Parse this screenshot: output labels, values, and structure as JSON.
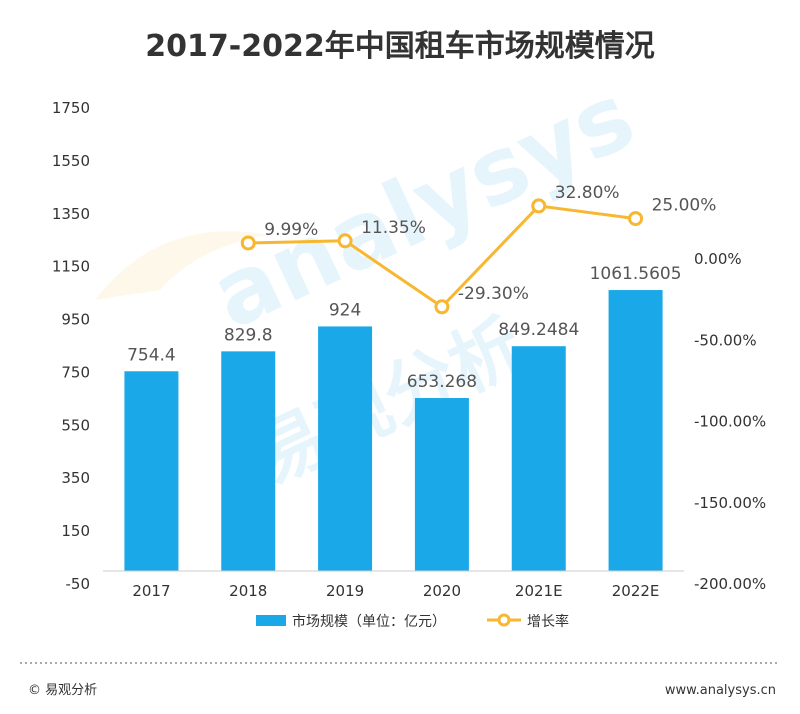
{
  "chart_data": {
    "type": "bar",
    "title": "2017-2022年中国租车市场规模情况",
    "categories": [
      "2017",
      "2018",
      "2019",
      "2020",
      "2021E",
      "2022E"
    ],
    "series": [
      {
        "name": "市场规模（单位：亿元）",
        "type": "bar",
        "axis": "left",
        "values": [
          754.4,
          829.8,
          924,
          653.268,
          849.2484,
          1061.5605
        ],
        "labels": [
          "754.4",
          "829.8",
          "924",
          "653.268",
          "849.2484",
          "1061.5605"
        ],
        "color": "#1aa8e8"
      },
      {
        "name": "增长率",
        "type": "line",
        "axis": "right",
        "values": [
          null,
          9.99,
          11.35,
          -29.3,
          32.8,
          25.0
        ],
        "labels": [
          "",
          "9.99%",
          "11.35%",
          "-29.30%",
          "32.80%",
          "25.00%"
        ],
        "color": "#f7b731"
      }
    ],
    "y_left": {
      "ylim": [
        -50,
        1750
      ],
      "ticks": [
        "-50",
        "150",
        "350",
        "550",
        "750",
        "950",
        "1150",
        "1350",
        "1550",
        "1750"
      ]
    },
    "y_right": {
      "ylim": [
        -200,
        50
      ],
      "ticks": [
        "-200.00%",
        "-150.00%",
        "-100.00%",
        "-50.00%",
        "0.00%"
      ]
    },
    "legend": "bottom",
    "grid": false
  },
  "watermark": {
    "latin": "analysys",
    "chinese": "易观分析"
  },
  "footer": {
    "source": "© 易观分析",
    "url": "www.analysys.cn"
  },
  "colors": {
    "bar": "#1aa8e8",
    "line": "#f7b731",
    "text": "#333333"
  }
}
